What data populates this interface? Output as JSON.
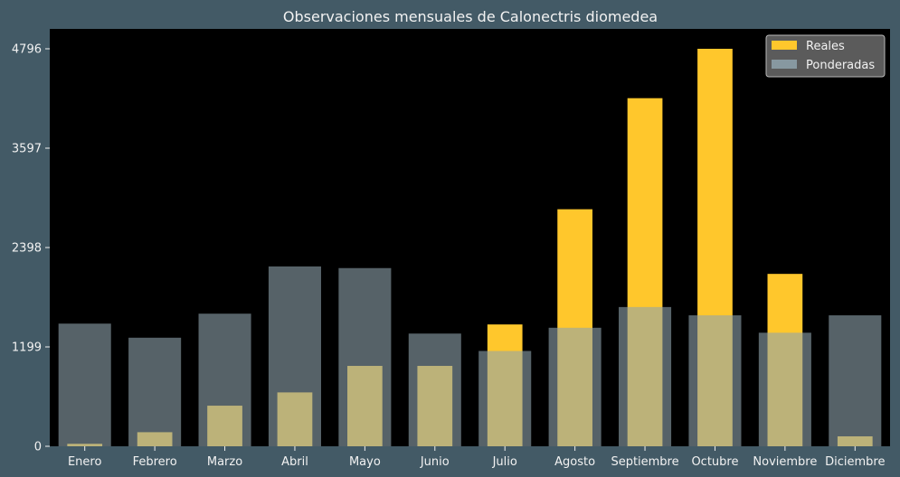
{
  "chart_data": {
    "type": "bar",
    "title": "Observaciones mensuales de Calonectris diomedea",
    "xlabel": "",
    "ylabel": "",
    "categories": [
      "Enero",
      "Febrero",
      "Marzo",
      "Abril",
      "Mayo",
      "Junio",
      "Julio",
      "Agosto",
      "Septiembre",
      "Octubre",
      "Noviembre",
      "Diciembre"
    ],
    "series": [
      {
        "name": "Reales",
        "color": "#ffc72c",
        "values": [
          30,
          170,
          490,
          650,
          970,
          970,
          1470,
          2860,
          4200,
          4796,
          2080,
          120
        ]
      },
      {
        "name": "Ponderadas",
        "color": "#8fa3ad",
        "values": [
          1480,
          1310,
          1600,
          2170,
          2150,
          1360,
          1150,
          1430,
          1680,
          1580,
          1370,
          1580
        ]
      }
    ],
    "yticks": [
      "0",
      "1199",
      "2398",
      "3597",
      "4796"
    ],
    "ylim": [
      0,
      4796
    ],
    "grid": false,
    "legend_position": "top-right",
    "background": "#000000",
    "figure_background": "#435a66"
  }
}
